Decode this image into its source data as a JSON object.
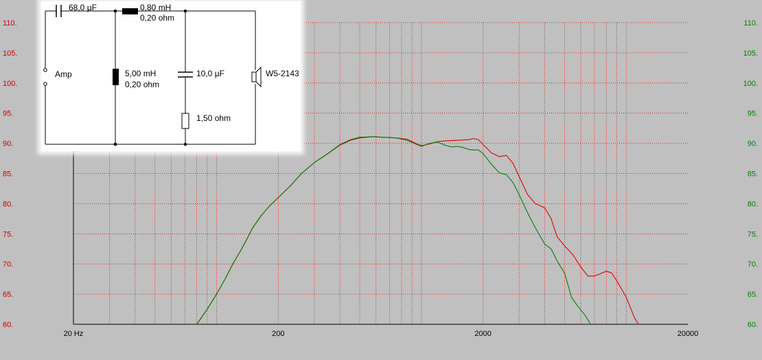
{
  "chart_data": {
    "type": "line",
    "xscale": "log",
    "xlim": [
      20,
      20000
    ],
    "ylim": [
      60,
      110
    ],
    "grid": true,
    "x_ticks": [
      {
        "value": 20,
        "label": "20 Hz"
      },
      {
        "value": 200,
        "label": "200"
      },
      {
        "value": 2000,
        "label": "2000"
      },
      {
        "value": 20000,
        "label": "20000"
      }
    ],
    "y_ticks_left": [
      "60.",
      "65.",
      "70.",
      "75.",
      "80.",
      "85.",
      "90.",
      "95.",
      "100.",
      "105.",
      "110."
    ],
    "y_ticks_right": [
      "60.",
      "65.",
      "70.",
      "75.",
      "80.",
      "85.",
      "90.",
      "95.",
      "100.",
      "105.",
      "110."
    ],
    "left_axis_color": "#cc0000",
    "right_axis_color": "#008000",
    "grid_color": "#e00000",
    "series": [
      {
        "color": "#e00000",
        "points": [
          [
            80,
            60
          ],
          [
            90,
            62.5
          ],
          [
            100,
            65
          ],
          [
            110,
            67.5
          ],
          [
            120,
            70
          ],
          [
            130,
            72
          ],
          [
            140,
            74
          ],
          [
            150,
            76
          ],
          [
            165,
            78
          ],
          [
            180,
            79.5
          ],
          [
            200,
            81
          ],
          [
            230,
            83
          ],
          [
            260,
            85
          ],
          [
            300,
            86.8
          ],
          [
            350,
            88.3
          ],
          [
            400,
            89.7
          ],
          [
            450,
            90.5
          ],
          [
            500,
            90.9
          ],
          [
            580,
            91.1
          ],
          [
            650,
            91
          ],
          [
            750,
            90.9
          ],
          [
            850,
            90.7
          ],
          [
            950,
            89.9
          ],
          [
            1000,
            89.6
          ],
          [
            1100,
            89.9
          ],
          [
            1200,
            90.3
          ],
          [
            1300,
            90.4
          ],
          [
            1500,
            90.5
          ],
          [
            1700,
            90.6
          ],
          [
            1800,
            90.8
          ],
          [
            1900,
            90.6
          ],
          [
            2000,
            89.8
          ],
          [
            2200,
            88.4
          ],
          [
            2400,
            87.8
          ],
          [
            2600,
            88
          ],
          [
            2800,
            86.7
          ],
          [
            3000,
            84.5
          ],
          [
            3300,
            81.5
          ],
          [
            3600,
            80
          ],
          [
            4000,
            79.3
          ],
          [
            4300,
            77.5
          ],
          [
            4600,
            74.5
          ],
          [
            5000,
            73
          ],
          [
            5500,
            71.5
          ],
          [
            6000,
            69.5
          ],
          [
            6500,
            68
          ],
          [
            7000,
            68
          ],
          [
            7500,
            68.4
          ],
          [
            8000,
            68.8
          ],
          [
            8500,
            68.5
          ],
          [
            9000,
            67.2
          ],
          [
            10000,
            64.5
          ],
          [
            11000,
            61
          ],
          [
            11500,
            60
          ]
        ]
      },
      {
        "color": "#008000",
        "points": [
          [
            80,
            60
          ],
          [
            90,
            62.5
          ],
          [
            100,
            65
          ],
          [
            110,
            67.5
          ],
          [
            120,
            70
          ],
          [
            130,
            72
          ],
          [
            140,
            74
          ],
          [
            150,
            76
          ],
          [
            165,
            78
          ],
          [
            180,
            79.5
          ],
          [
            200,
            81
          ],
          [
            230,
            83
          ],
          [
            260,
            85
          ],
          [
            300,
            86.8
          ],
          [
            350,
            88.3
          ],
          [
            400,
            89.8
          ],
          [
            450,
            90.6
          ],
          [
            500,
            91
          ],
          [
            580,
            91.1
          ],
          [
            650,
            91
          ],
          [
            750,
            90.9
          ],
          [
            850,
            90.5
          ],
          [
            950,
            89.8
          ],
          [
            1000,
            89.5
          ],
          [
            1100,
            90
          ],
          [
            1200,
            90.2
          ],
          [
            1300,
            89.7
          ],
          [
            1400,
            89.4
          ],
          [
            1500,
            89.5
          ],
          [
            1600,
            89.3
          ],
          [
            1700,
            89
          ],
          [
            1800,
            88.9
          ],
          [
            1900,
            88.9
          ],
          [
            2000,
            88.3
          ],
          [
            2200,
            86.5
          ],
          [
            2400,
            85.1
          ],
          [
            2600,
            84.8
          ],
          [
            2800,
            83.5
          ],
          [
            3000,
            81.5
          ],
          [
            3300,
            78.5
          ],
          [
            3600,
            76
          ],
          [
            4000,
            73.3
          ],
          [
            4300,
            72.5
          ],
          [
            4600,
            70.5
          ],
          [
            5000,
            68.5
          ],
          [
            5400,
            64.5
          ],
          [
            5800,
            63
          ],
          [
            6300,
            61.5
          ],
          [
            6700,
            60
          ]
        ]
      }
    ]
  },
  "schematic": {
    "source_label": "Amp",
    "c1_label": "68,0 µF",
    "l1_label_line1": "0,80 mH",
    "l1_label_line2": "0,20 ohm",
    "l2_label_line1": "5,00 mH",
    "l2_label_line2": "0,20 ohm",
    "c2_label": "10,0 µF",
    "r1_label": "1,50 ohm",
    "driver_label": "W5-2143"
  }
}
